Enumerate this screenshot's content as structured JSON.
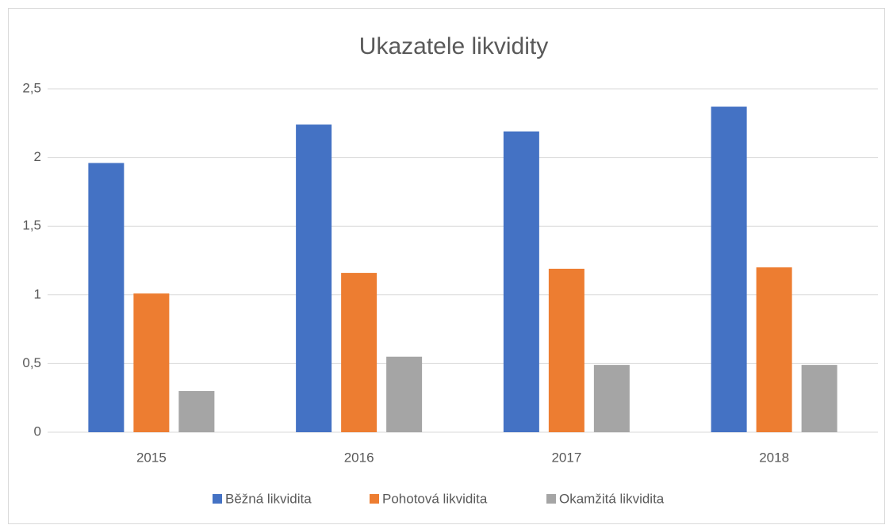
{
  "chart_data": {
    "type": "bar",
    "title": "Ukazatele likvidity",
    "categories": [
      "2015",
      "2016",
      "2017",
      "2018"
    ],
    "series": [
      {
        "name": "Běžná likvidita",
        "color": "#4472c4",
        "values": [
          1.96,
          2.24,
          2.19,
          2.37
        ]
      },
      {
        "name": "Pohotová likvidita",
        "color": "#ed7d31",
        "values": [
          1.01,
          1.16,
          1.19,
          1.2
        ]
      },
      {
        "name": "Okamžitá likvidita",
        "color": "#a5a5a5",
        "values": [
          0.3,
          0.55,
          0.49,
          0.49
        ]
      }
    ],
    "ylim": [
      0,
      2.5
    ],
    "yticks": [
      0,
      {
        "value": 0.5,
        "label": "0,5"
      },
      1,
      {
        "value": 1.5,
        "label": "1,5"
      },
      2,
      {
        "value": 2.5,
        "label": "2,5"
      }
    ],
    "grid": true,
    "legend": "bottom"
  }
}
